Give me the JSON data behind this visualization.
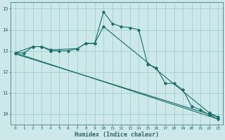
{
  "xlabel": "Humidex (Indice chaleur)",
  "background_color": "#cce8e8",
  "grid_color": "#99cccc",
  "line_color": "#1a6e6a",
  "xlim": [
    -0.5,
    23.5
  ],
  "ylim": [
    9.5,
    15.3
  ],
  "yticks": [
    10,
    11,
    12,
    13,
    14,
    15
  ],
  "xticks": [
    0,
    1,
    2,
    3,
    4,
    5,
    6,
    7,
    8,
    9,
    10,
    11,
    12,
    13,
    14,
    15,
    16,
    17,
    18,
    19,
    20,
    21,
    22,
    23
  ],
  "curve1_x": [
    0,
    1,
    2,
    3,
    4,
    5,
    6,
    7,
    8,
    9,
    10,
    11,
    12,
    13,
    14,
    15,
    16,
    17,
    18,
    19,
    20,
    21,
    22,
    23
  ],
  "curve1_y": [
    12.9,
    12.9,
    13.2,
    13.2,
    13.0,
    13.0,
    13.0,
    13.1,
    13.35,
    13.35,
    14.85,
    14.3,
    14.15,
    14.1,
    14.0,
    12.35,
    12.2,
    11.45,
    11.45,
    11.15,
    10.35,
    10.2,
    9.95,
    9.75
  ],
  "curve2_x": [
    0,
    2,
    3,
    4,
    7,
    8,
    9,
    10,
    22,
    23
  ],
  "curve2_y": [
    12.9,
    13.2,
    13.2,
    13.05,
    13.1,
    13.35,
    13.35,
    14.15,
    10.05,
    9.85
  ],
  "curve3_x": [
    0,
    23
  ],
  "curve3_y": [
    12.9,
    9.75
  ],
  "curve4_x": [
    0,
    23
  ],
  "curve4_y": [
    12.85,
    9.85
  ]
}
